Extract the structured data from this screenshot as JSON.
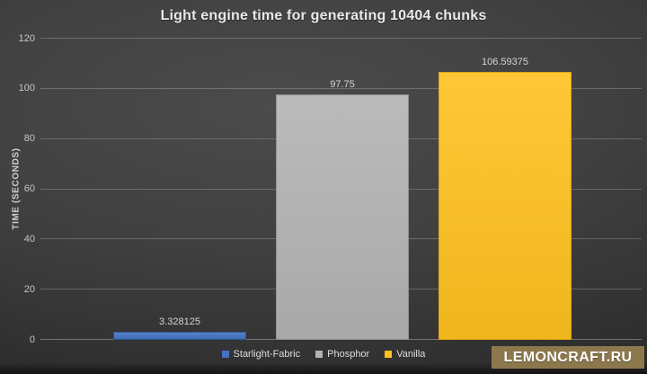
{
  "chart_data": {
    "type": "bar",
    "title": "Light engine time for generating 10404 chunks",
    "xlabel": "",
    "ylabel": "TIME (SECONDS)",
    "categories": [
      "Starlight-Fabric",
      "Phosphor",
      "Vanilla"
    ],
    "values": [
      3.328125,
      97.75,
      106.59375
    ],
    "value_labels": [
      "3.328125",
      "97.75",
      "106.59375"
    ],
    "bar_colors": [
      "#4472c4",
      "#b3b3b3",
      "#ffc120"
    ],
    "bar_border_colors": [
      "#2d5394",
      "#8f8f8f",
      "#dfa70e"
    ],
    "ylim": [
      0,
      120
    ],
    "yticks": [
      0,
      20,
      40,
      60,
      80,
      100,
      120
    ],
    "grid": true,
    "legend_position": "bottom",
    "background": "dark-gray-gradient"
  },
  "watermark": {
    "text": "LEMONCRAFT.RU",
    "background_color": "#8d784e"
  }
}
